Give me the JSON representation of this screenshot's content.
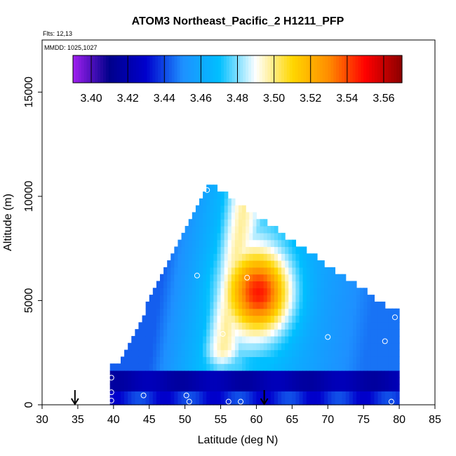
{
  "chart_data": {
    "type": "heatmap",
    "title": "ATOM3 Northeast_Pacific_2 H1211_PFP",
    "flights_note": "Flts: 12,13",
    "dates_note": "MMDD: 1025,1027",
    "xlabel": "Latitude (deg N)",
    "ylabel": "Altitude (m)",
    "xlim": [
      30,
      85
    ],
    "ylim": [
      0,
      17500
    ],
    "x_ticks": [
      "30",
      "35",
      "40",
      "45",
      "50",
      "55",
      "60",
      "65",
      "70",
      "75",
      "80",
      "85"
    ],
    "y_ticks": [
      "0",
      "5000",
      "10000",
      "15000"
    ],
    "colorbar": {
      "min": 3.39,
      "max": 3.57,
      "tick_values": [
        3.4,
        3.42,
        3.44,
        3.46,
        3.48,
        3.5,
        3.52,
        3.54,
        3.56
      ],
      "tick_labels": [
        "3.40",
        "3.42",
        "3.44",
        "3.46",
        "3.48",
        "3.50",
        "3.52",
        "3.54",
        "3.56"
      ],
      "colors": [
        "#a020f0",
        "#00008b",
        "#0000cd",
        "#1e90ff",
        "#00bfff",
        "#ffffff",
        "#ffd700",
        "#ff8c00",
        "#ff0000",
        "#8b0000"
      ]
    },
    "grid": false,
    "samples": [
      {
        "lat": 39.7,
        "alt": 200
      },
      {
        "lat": 39.7,
        "alt": 600
      },
      {
        "lat": 39.7,
        "alt": 1300
      },
      {
        "lat": 44.2,
        "alt": 450
      },
      {
        "lat": 50.2,
        "alt": 450
      },
      {
        "lat": 50.6,
        "alt": 150
      },
      {
        "lat": 51.7,
        "alt": 6200
      },
      {
        "lat": 53.1,
        "alt": 10300
      },
      {
        "lat": 55.3,
        "alt": 3400
      },
      {
        "lat": 56.1,
        "alt": 150
      },
      {
        "lat": 57.8,
        "alt": 150
      },
      {
        "lat": 58.7,
        "alt": 6100
      },
      {
        "lat": 70.0,
        "alt": 3250
      },
      {
        "lat": 78.0,
        "alt": 3050
      },
      {
        "lat": 78.9,
        "alt": 150
      },
      {
        "lat": 79.4,
        "alt": 4200
      }
    ],
    "arrows_lat": [
      34.6,
      61.1
    ]
  }
}
